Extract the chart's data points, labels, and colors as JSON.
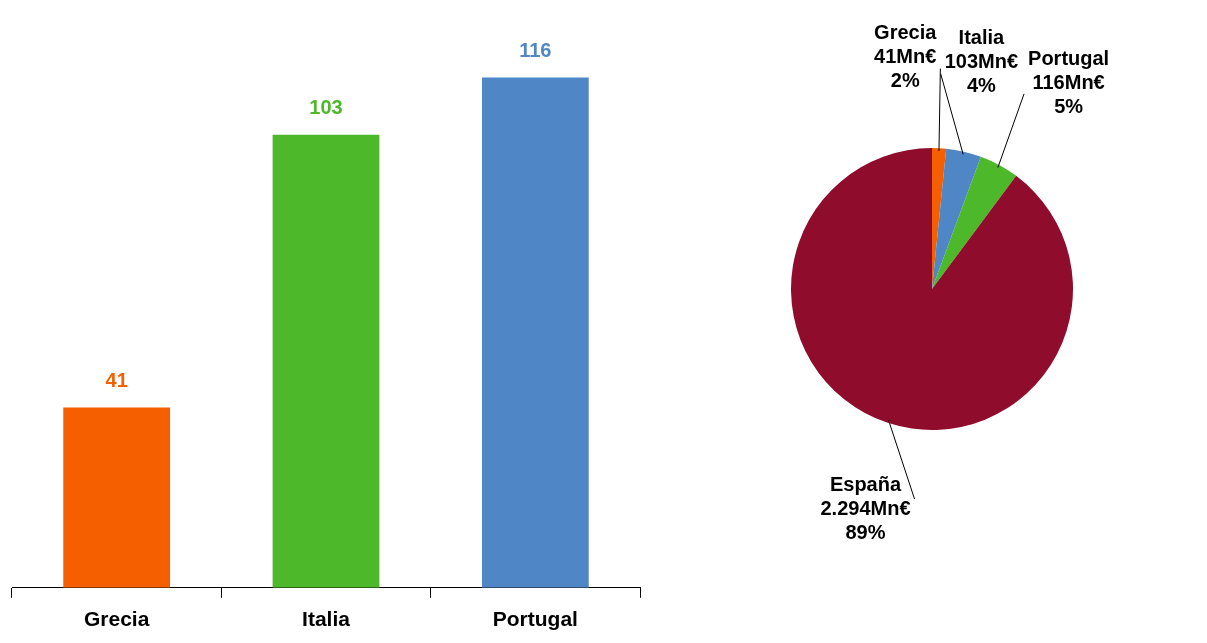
{
  "chart_data": [
    {
      "type": "bar",
      "categories": [
        "Grecia",
        "Italia",
        "Portugal"
      ],
      "values": [
        41,
        103,
        116
      ],
      "colors": [
        "#f55f00",
        "#4cb82a",
        "#4f86c6"
      ],
      "data_labels": true,
      "legend": false,
      "tick_labels": "x",
      "grid": false
    },
    {
      "type": "pie",
      "categories": [
        "Grecia",
        "Italia",
        "Portugal",
        "España"
      ],
      "values": [
        41,
        103,
        116,
        2294
      ],
      "colors": [
        "#f55f00",
        "#4f86c6",
        "#4cb82a",
        "#8f0c2c"
      ],
      "value_labels": [
        "41Mn€\n2%",
        "103Mn€\n4%",
        "116Mn€\n5%",
        "2.294Mn€\n89%"
      ],
      "legend": false
    }
  ]
}
